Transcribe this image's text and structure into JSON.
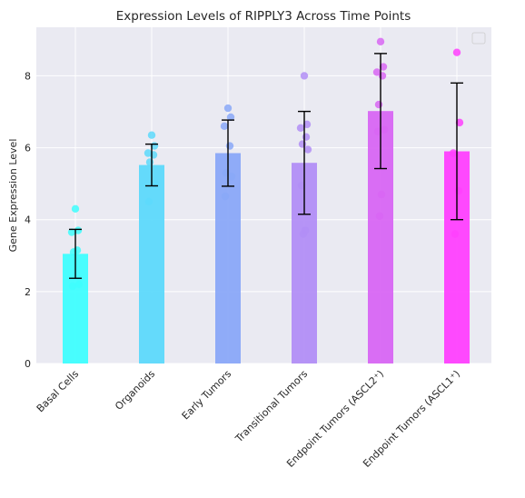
{
  "chart_data": {
    "type": "bar",
    "title": "Expression Levels of RIPPLY3 Across Time Points",
    "xlabel": "",
    "ylabel": "Gene Expression Level",
    "categories": [
      "Basal Cells",
      "Organoids",
      "Early Tumors",
      "Transitional Tumors",
      "Endpoint Tumors (ASCL2⁺)",
      "Endpoint Tumors (ASCL1⁺)"
    ],
    "values": [
      3.05,
      5.52,
      5.85,
      5.58,
      7.02,
      5.9
    ],
    "errors": [
      0.68,
      0.58,
      0.92,
      1.43,
      1.6,
      1.9
    ],
    "ylim": [
      0,
      9.35
    ],
    "yticks": [
      0,
      2,
      4,
      6,
      8
    ],
    "colors": [
      "#3ffefe",
      "#5dd9fb",
      "#8aa8f8",
      "#b28ef6",
      "#d866f3",
      "#ff40fe"
    ],
    "points": [
      [
        4.3,
        3.7,
        3.65,
        3.15,
        3.1,
        2.2,
        2.15
      ],
      [
        6.35,
        6.05,
        5.85,
        5.8,
        5.6,
        5.0,
        4.5
      ],
      [
        7.1,
        6.85,
        6.6,
        6.05,
        5.3,
        5.2,
        4.65
      ],
      [
        8.0,
        6.65,
        6.55,
        6.3,
        6.1,
        5.95,
        4.95,
        3.7,
        3.6
      ],
      [
        8.95,
        8.25,
        8.1,
        8.0,
        7.2,
        6.5,
        6.45,
        4.7,
        4.1
      ],
      [
        8.65,
        6.7,
        5.85,
        4.8,
        3.6
      ]
    ],
    "grid": true,
    "legend": "top-right"
  }
}
